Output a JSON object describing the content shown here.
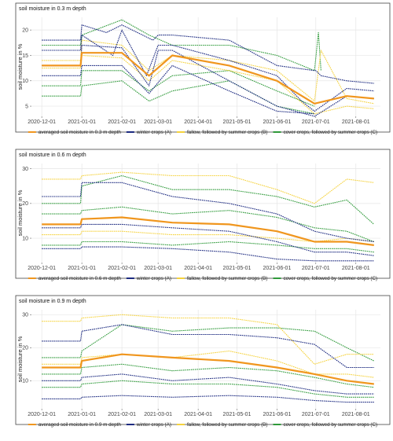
{
  "colors": {
    "averaged": "#f0961e",
    "winter": "#1c2a80",
    "fallow": "#f5d23c",
    "cover": "#2f9a3a",
    "grid": "#e6e6e6",
    "frame": "#444444"
  },
  "chart_data": [
    {
      "type": "line",
      "title": "soil moisture in 0.3 m depth",
      "ylabel": "soil moisture in %",
      "xlabel": "",
      "xlim": [
        "2020-11-23",
        "2021-08-20"
      ],
      "ylim": [
        3,
        22.5
      ],
      "yticks": [
        5,
        10,
        15,
        20
      ],
      "xticks": [
        "2020-12-01",
        "2021-01-01",
        "2021-02-01",
        "2021-03-01",
        "2021-04-01",
        "2021-05-01",
        "2021-06-01",
        "2021-07-01",
        "2021-08-01"
      ],
      "grid": true,
      "legend_position": "bottom",
      "legend": [
        {
          "key": "averaged",
          "label": "averaged soil moisture in 0.3 m depth"
        },
        {
          "key": "winter",
          "label": "winter crops (A)"
        },
        {
          "key": "fallow",
          "label": "fallow, followed by summer crops (B)"
        },
        {
          "key": "cover",
          "label": "cover crops, followed by summer crops (C)"
        }
      ],
      "series": [
        {
          "group": "winter",
          "x": [
            "2020-12-01",
            "2020-12-31",
            "2021-01-01",
            "2021-01-20",
            "2021-02-01",
            "2021-02-25",
            "2021-03-01",
            "2021-03-12",
            "2021-04-25",
            "2021-06-01",
            "2021-06-30",
            "2021-07-01",
            "2021-07-05",
            "2021-07-25",
            "2021-08-15"
          ],
          "values": [
            18,
            18,
            21,
            19.5,
            21,
            18,
            19,
            19,
            18,
            13,
            12,
            12,
            11,
            10,
            9.5
          ]
        },
        {
          "group": "winter",
          "x": [
            "2020-12-01",
            "2020-12-31",
            "2021-01-01",
            "2021-01-25",
            "2021-02-01",
            "2021-02-20",
            "2021-03-01",
            "2021-03-12",
            "2021-04-25",
            "2021-06-01",
            "2021-06-20",
            "2021-06-30",
            "2021-07-25",
            "2021-08-15"
          ],
          "values": [
            16,
            16,
            19,
            15,
            20,
            11,
            17,
            17,
            14,
            11,
            6,
            4,
            8.5,
            8
          ]
        },
        {
          "group": "winter",
          "x": [
            "2020-12-01",
            "2020-12-31",
            "2021-01-01",
            "2021-02-01",
            "2021-02-22",
            "2021-03-01",
            "2021-03-12",
            "2021-04-25",
            "2021-06-01",
            "2021-06-30",
            "2021-07-25",
            "2021-08-15"
          ],
          "values": [
            13,
            13,
            17,
            16.5,
            9,
            16,
            16,
            10,
            5,
            3,
            7,
            6.5
          ]
        },
        {
          "group": "winter",
          "x": [
            "2020-12-01",
            "2020-12-31",
            "2021-01-01",
            "2021-02-01",
            "2021-02-22",
            "2021-03-12",
            "2021-04-25",
            "2021-06-01",
            "2021-06-30"
          ],
          "values": [
            11,
            11,
            13,
            13,
            7.5,
            13,
            8,
            4,
            3.5
          ]
        },
        {
          "group": "fallow",
          "x": [
            "2020-12-01",
            "2020-12-31",
            "2021-01-01",
            "2021-02-01",
            "2021-02-22",
            "2021-03-12",
            "2021-04-25",
            "2021-06-01",
            "2021-06-30",
            "2021-07-05",
            "2021-07-25",
            "2021-08-15"
          ],
          "values": [
            14,
            14,
            18,
            17,
            12,
            15,
            14,
            12,
            6,
            16,
            6.5,
            5.5
          ]
        },
        {
          "group": "fallow",
          "x": [
            "2020-12-01",
            "2020-12-31",
            "2021-01-01",
            "2021-02-01",
            "2021-02-22",
            "2021-03-12",
            "2021-04-25",
            "2021-06-01",
            "2021-06-30",
            "2021-07-25",
            "2021-08-15"
          ],
          "values": [
            12.5,
            12.5,
            15,
            14.5,
            10,
            14,
            12,
            10,
            3.5,
            5,
            4.5
          ]
        },
        {
          "group": "cover",
          "x": [
            "2020-12-01",
            "2020-12-31",
            "2021-01-01",
            "2021-02-01",
            "2021-02-22",
            "2021-03-12",
            "2021-04-25",
            "2021-06-01",
            "2021-06-30",
            "2021-07-03",
            "2021-07-05"
          ],
          "values": [
            17,
            17,
            19,
            22,
            19,
            17,
            17,
            15,
            12,
            19.5,
            12
          ]
        },
        {
          "group": "cover",
          "x": [
            "2020-12-01",
            "2020-12-31",
            "2021-01-01",
            "2021-02-01",
            "2021-02-22",
            "2021-03-12",
            "2021-04-25",
            "2021-06-01",
            "2021-06-30"
          ],
          "values": [
            9,
            9,
            12,
            12,
            8,
            11,
            12,
            8,
            5
          ]
        },
        {
          "group": "cover",
          "x": [
            "2020-12-01",
            "2020-12-31",
            "2021-01-01",
            "2021-02-01",
            "2021-02-22",
            "2021-03-12",
            "2021-04-25",
            "2021-06-01",
            "2021-06-30"
          ],
          "values": [
            7,
            7,
            9,
            10,
            6,
            8,
            10,
            5,
            3.5
          ]
        },
        {
          "group": "averaged",
          "x": [
            "2020-12-01",
            "2020-12-31",
            "2021-01-01",
            "2021-02-01",
            "2021-02-22",
            "2021-03-12",
            "2021-04-25",
            "2021-06-01",
            "2021-06-30",
            "2021-07-25",
            "2021-08-15"
          ],
          "values": [
            13,
            13,
            15.5,
            15.5,
            11,
            15,
            13,
            10,
            5.5,
            7,
            6.5
          ]
        }
      ]
    },
    {
      "type": "line",
      "title": "soil moisture in 0.6 m depth",
      "ylabel": "soil moisture in %",
      "xlabel": "",
      "xlim": [
        "2020-11-23",
        "2021-08-20"
      ],
      "ylim": [
        3,
        31.5
      ],
      "yticks": [
        10,
        20,
        30
      ],
      "xticks": [
        "2020-12-01",
        "2021-01-01",
        "2021-02-01",
        "2021-03-01",
        "2021-04-01",
        "2021-05-01",
        "2021-06-01",
        "2021-07-01",
        "2021-08-01"
      ],
      "grid": true,
      "legend_position": "bottom",
      "legend": [
        {
          "key": "averaged",
          "label": "averaged soil moisture in 0.6 m depth"
        },
        {
          "key": "winter",
          "label": "winter crops (A)"
        },
        {
          "key": "fallow",
          "label": "fallow, followed by summer crops (B)"
        },
        {
          "key": "cover",
          "label": "cover crops, followed by summer crops (C)"
        }
      ],
      "series": [
        {
          "group": "fallow",
          "x": [
            "2020-12-01",
            "2020-12-31",
            "2021-01-01",
            "2021-02-01",
            "2021-03-12",
            "2021-04-25",
            "2021-06-01",
            "2021-06-30",
            "2021-07-25",
            "2021-08-15"
          ],
          "values": [
            27,
            27,
            28,
            29,
            28,
            28,
            24,
            20,
            27,
            26
          ]
        },
        {
          "group": "winter",
          "x": [
            "2020-12-01",
            "2020-12-31",
            "2021-01-01",
            "2021-02-01",
            "2021-03-12",
            "2021-04-25",
            "2021-06-01",
            "2021-06-30",
            "2021-07-25",
            "2021-08-15"
          ],
          "values": [
            22,
            22,
            26,
            26,
            22,
            20,
            17,
            12,
            10,
            9
          ]
        },
        {
          "group": "cover",
          "x": [
            "2020-12-01",
            "2020-12-31",
            "2021-01-01",
            "2021-02-01",
            "2021-03-12",
            "2021-04-25",
            "2021-06-01",
            "2021-06-30",
            "2021-07-25",
            "2021-08-15"
          ],
          "values": [
            20,
            20,
            25,
            28,
            24,
            24,
            22,
            19,
            21,
            14
          ]
        },
        {
          "group": "cover",
          "x": [
            "2020-12-01",
            "2020-12-31",
            "2021-01-01",
            "2021-02-01",
            "2021-03-12",
            "2021-04-25",
            "2021-06-01",
            "2021-06-30",
            "2021-07-25",
            "2021-08-15"
          ],
          "values": [
            17,
            17,
            18,
            19,
            17,
            18,
            16,
            13,
            12,
            9
          ]
        },
        {
          "group": "averaged",
          "x": [
            "2020-12-01",
            "2020-12-31",
            "2021-01-01",
            "2021-02-01",
            "2021-03-12",
            "2021-04-25",
            "2021-06-01",
            "2021-06-30",
            "2021-07-25",
            "2021-08-15"
          ],
          "values": [
            14,
            14,
            15.5,
            16,
            14.5,
            14,
            12,
            9,
            9,
            8
          ]
        },
        {
          "group": "winter",
          "x": [
            "2020-12-01",
            "2020-12-31",
            "2021-01-01",
            "2021-02-01",
            "2021-03-12",
            "2021-04-25",
            "2021-06-01",
            "2021-06-30",
            "2021-07-25",
            "2021-08-15"
          ],
          "values": [
            13,
            13,
            14,
            14,
            13,
            12,
            9,
            6,
            6,
            5
          ]
        },
        {
          "group": "fallow",
          "x": [
            "2020-12-01",
            "2020-12-31",
            "2021-01-01",
            "2021-02-01",
            "2021-03-12",
            "2021-04-25",
            "2021-06-01",
            "2021-06-30",
            "2021-07-25",
            "2021-08-15"
          ],
          "values": [
            11,
            11,
            12,
            12,
            11,
            11,
            10,
            9,
            10,
            9
          ]
        },
        {
          "group": "cover",
          "x": [
            "2020-12-01",
            "2020-12-31",
            "2021-01-01",
            "2021-02-01",
            "2021-03-12",
            "2021-04-25",
            "2021-06-01",
            "2021-06-30",
            "2021-07-25",
            "2021-08-15"
          ],
          "values": [
            8,
            8,
            9,
            9,
            8,
            9,
            8,
            7,
            7,
            6
          ]
        },
        {
          "group": "winter",
          "x": [
            "2020-12-01",
            "2020-12-31",
            "2021-01-01",
            "2021-02-01",
            "2021-03-12",
            "2021-04-25",
            "2021-06-01",
            "2021-06-30",
            "2021-07-25",
            "2021-08-15"
          ],
          "values": [
            7,
            7,
            7.5,
            7.5,
            7,
            6,
            4,
            3.5,
            3.5,
            3.5
          ]
        }
      ]
    },
    {
      "type": "line",
      "title": "soil moisture in 0.9 m depth",
      "ylabel": "soil moisture in %",
      "xlabel": "",
      "xlim": [
        "2020-11-23",
        "2021-08-20"
      ],
      "ylim": [
        1.5,
        31.5
      ],
      "yticks": [
        10,
        20,
        30
      ],
      "xticks": [
        "2020-12-01",
        "2021-01-01",
        "2021-02-01",
        "2021-03-01",
        "2021-04-01",
        "2021-05-01",
        "2021-06-01",
        "2021-07-01",
        "2021-08-01"
      ],
      "grid": true,
      "legend_position": "bottom",
      "legend": [
        {
          "key": "averaged",
          "label": "averaged soil moisture in 0.9 m depth"
        },
        {
          "key": "winter",
          "label": "winter crops (A)"
        },
        {
          "key": "fallow",
          "label": "fallow, followed by summer crops (B)"
        },
        {
          "key": "cover",
          "label": "cover crops, followed by summer crops (C)"
        }
      ],
      "series": [
        {
          "group": "fallow",
          "x": [
            "2020-12-01",
            "2020-12-31",
            "2021-01-01",
            "2021-02-01",
            "2021-03-12",
            "2021-04-25",
            "2021-06-01",
            "2021-06-30",
            "2021-07-25",
            "2021-08-15"
          ],
          "values": [
            28,
            28,
            29,
            30,
            29,
            29,
            27,
            15,
            18,
            18
          ]
        },
        {
          "group": "winter",
          "x": [
            "2020-12-01",
            "2020-12-31",
            "2021-01-01",
            "2021-02-01",
            "2021-03-12",
            "2021-04-25",
            "2021-06-01",
            "2021-06-30",
            "2021-07-25",
            "2021-08-15"
          ],
          "values": [
            22,
            22,
            25,
            27,
            24,
            24,
            23,
            21,
            14,
            14
          ]
        },
        {
          "group": "cover",
          "x": [
            "2020-12-01",
            "2020-12-31",
            "2021-01-01",
            "2021-02-01",
            "2021-03-12",
            "2021-04-25",
            "2021-06-01",
            "2021-06-30",
            "2021-07-25",
            "2021-08-15"
          ],
          "values": [
            17,
            17,
            19,
            27,
            25,
            26,
            26,
            25,
            20,
            16
          ]
        },
        {
          "group": "averaged",
          "x": [
            "2020-12-01",
            "2020-12-31",
            "2021-01-01",
            "2021-02-01",
            "2021-03-12",
            "2021-04-25",
            "2021-06-01",
            "2021-06-30",
            "2021-07-25",
            "2021-08-15"
          ],
          "values": [
            14,
            14,
            16,
            18,
            17,
            16,
            14,
            12,
            10,
            9
          ]
        },
        {
          "group": "fallow",
          "x": [
            "2020-12-01",
            "2020-12-31",
            "2021-01-01",
            "2021-02-01",
            "2021-03-12",
            "2021-04-25",
            "2021-06-01",
            "2021-06-30",
            "2021-07-25",
            "2021-08-15"
          ],
          "values": [
            15,
            15,
            17,
            18,
            17,
            19,
            16,
            12,
            12,
            11
          ]
        },
        {
          "group": "cover",
          "x": [
            "2020-12-01",
            "2020-12-31",
            "2021-01-01",
            "2021-02-01",
            "2021-03-12",
            "2021-04-25",
            "2021-06-01",
            "2021-06-30",
            "2021-07-25",
            "2021-08-15"
          ],
          "values": [
            12,
            12,
            14,
            15,
            13,
            14,
            13,
            11,
            9,
            8
          ]
        },
        {
          "group": "winter",
          "x": [
            "2020-12-01",
            "2020-12-31",
            "2021-01-01",
            "2021-02-01",
            "2021-03-12",
            "2021-04-25",
            "2021-06-01",
            "2021-06-30",
            "2021-07-25",
            "2021-08-15"
          ],
          "values": [
            10,
            10,
            11,
            12,
            10,
            11,
            9,
            7,
            6,
            6
          ]
        },
        {
          "group": "cover",
          "x": [
            "2020-12-01",
            "2020-12-31",
            "2021-01-01",
            "2021-02-01",
            "2021-03-12",
            "2021-04-25",
            "2021-06-01",
            "2021-06-30",
            "2021-07-25",
            "2021-08-15"
          ],
          "values": [
            8,
            8,
            9,
            10,
            9,
            9,
            8,
            6,
            5,
            5
          ]
        },
        {
          "group": "winter",
          "x": [
            "2020-12-01",
            "2020-12-31",
            "2021-01-01",
            "2021-02-01",
            "2021-03-12",
            "2021-04-25",
            "2021-06-01",
            "2021-06-30",
            "2021-07-25",
            "2021-08-15"
          ],
          "values": [
            4.5,
            4.5,
            5,
            5.5,
            5,
            5.5,
            5,
            4,
            3.5,
            3.5
          ]
        }
      ]
    }
  ]
}
